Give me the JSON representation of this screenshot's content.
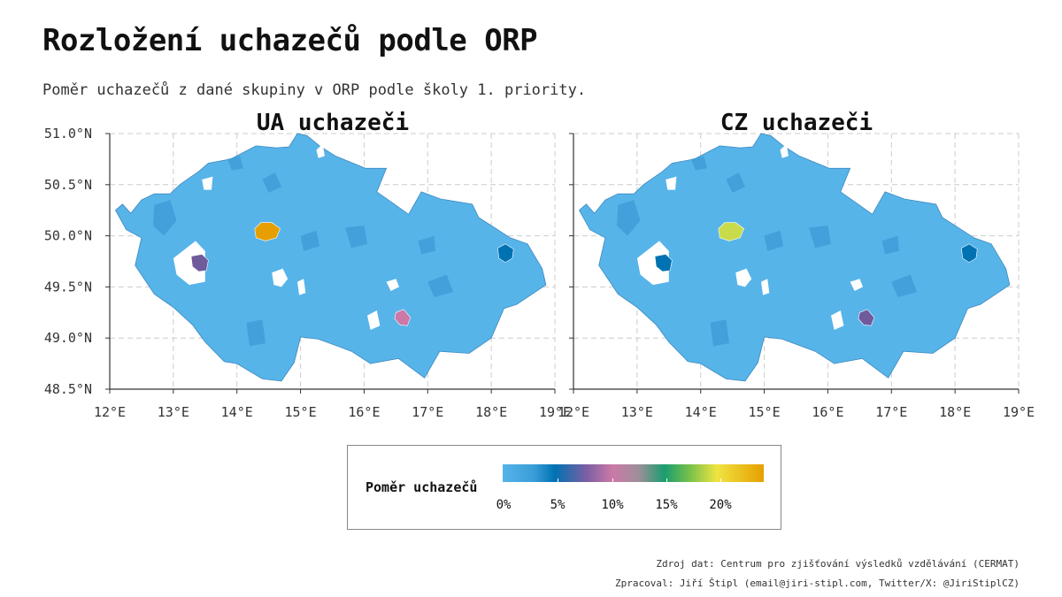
{
  "title": "Rozložení uchazečů podle ORP",
  "subtitle": "Poměr uchazečů z dané skupiny v ORP podle školy 1. priority.",
  "colors": {
    "base_fill": "#56B4E9",
    "dark_blue": "#0072B2",
    "purple": "#6f5a9c",
    "pink": "#CC79A7",
    "orange": "#E69F00",
    "yellow_green": "#C9DB4A",
    "missing": "#ffffff",
    "grid": "#cccccc"
  },
  "map": {
    "lon_range": [
      12,
      19
    ],
    "lat_range": [
      48.5,
      51.0
    ],
    "lon_ticks": [
      "12°E",
      "13°E",
      "14°E",
      "15°E",
      "16°E",
      "17°E",
      "18°E",
      "19°E"
    ],
    "lat_ticks": [
      "51.0°N",
      "50.5°N",
      "50.0°N",
      "49.5°N",
      "49.0°N",
      "48.5°N"
    ],
    "grid": "dashed"
  },
  "panels": [
    {
      "title": "UA uchazeči",
      "highlights": [
        {
          "place": "Praha",
          "color": "orange",
          "share_pct": 24
        },
        {
          "place": "Plzeň",
          "color": "purple",
          "share_pct": 8
        },
        {
          "place": "Ostrava",
          "color": "dark_blue",
          "share_pct": 6
        },
        {
          "place": "Brno",
          "color": "pink",
          "share_pct": 10
        }
      ]
    },
    {
      "title": "CZ uchazeči",
      "highlights": [
        {
          "place": "Praha",
          "color": "yellow_green",
          "share_pct": 19
        },
        {
          "place": "Plzeň",
          "color": "dark_blue",
          "share_pct": 5
        },
        {
          "place": "Ostrava",
          "color": "dark_blue",
          "share_pct": 5
        },
        {
          "place": "Brno",
          "color": "purple",
          "share_pct": 8
        }
      ]
    }
  ],
  "legend": {
    "title": "Poměr uchazečů",
    "labels": [
      "0%",
      "5%",
      "10%",
      "15%",
      "20%"
    ]
  },
  "credits": {
    "source": "Zdroj dat: Centrum pro zjišťování výsledků vzdělávání (CERMAT)",
    "author": "Zpracoval: Jiří Štipl (email@jiri-stipl.com, Twitter/X: @JiriStiplCZ)"
  }
}
